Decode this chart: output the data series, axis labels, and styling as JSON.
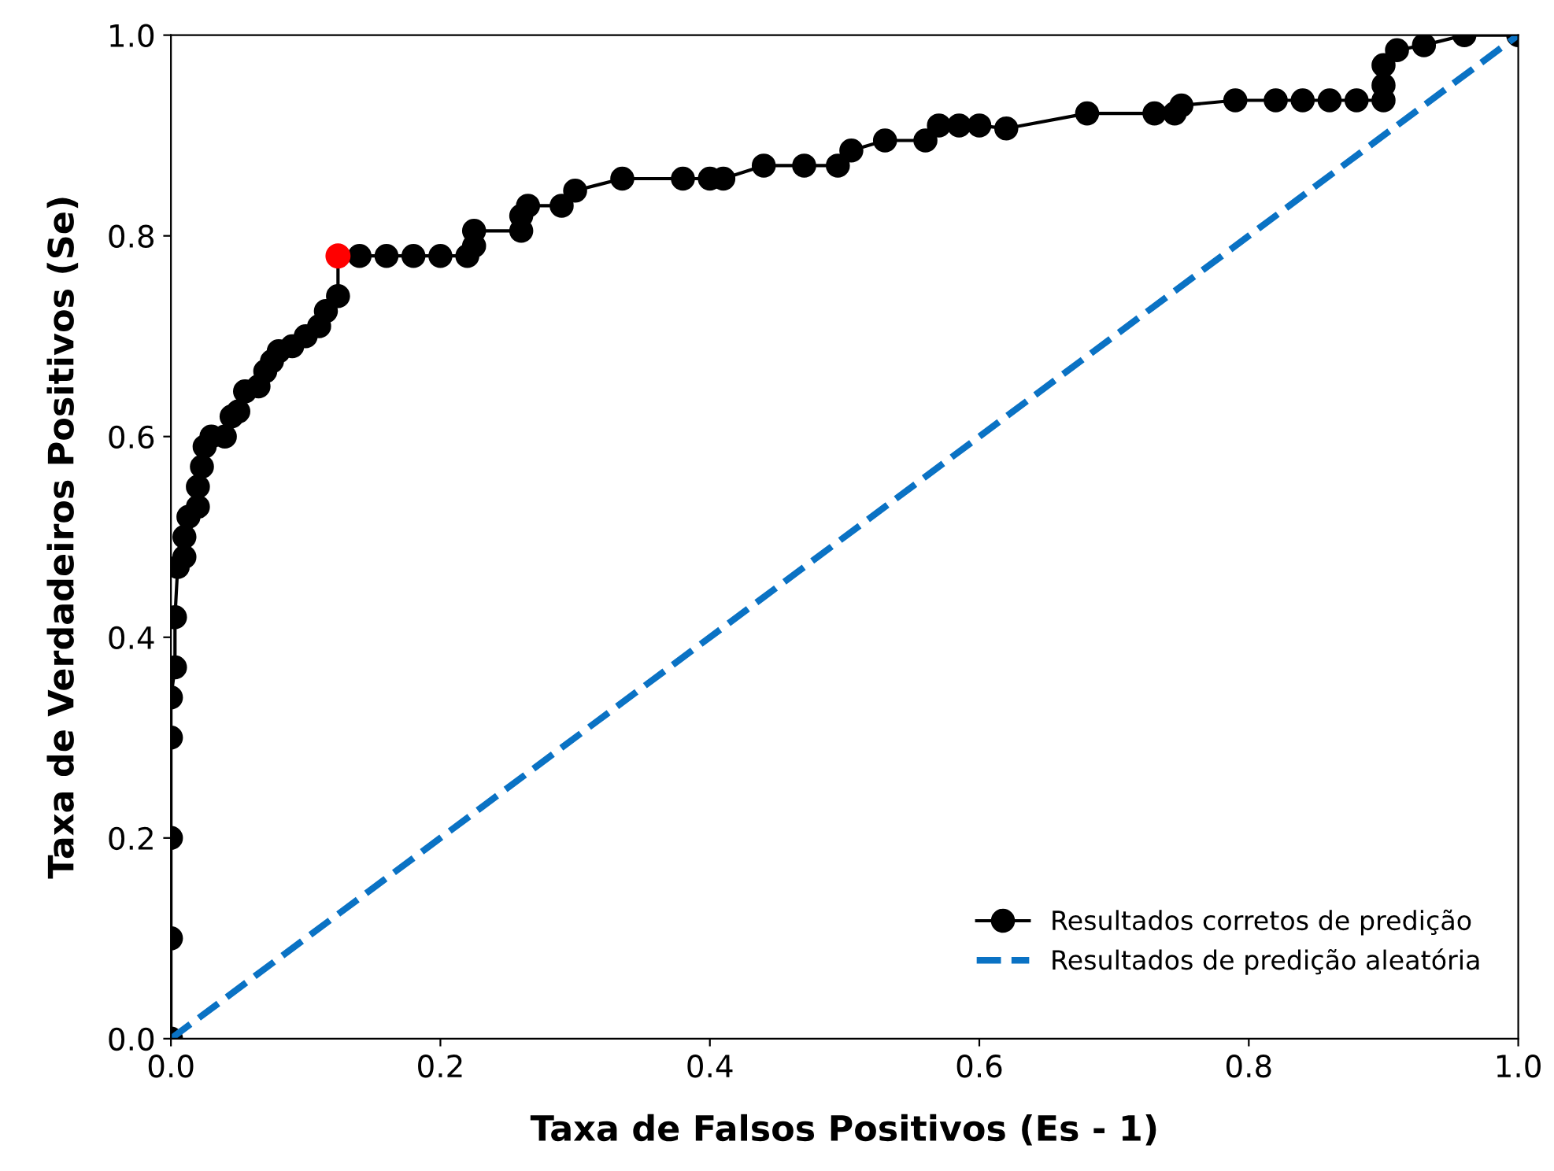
{
  "chart_data": {
    "type": "line",
    "xlabel": "Taxa de Falsos Positivos (Es - 1)",
    "ylabel": "Taxa de Verdadeiros Positivos (Se)",
    "xlim": [
      0,
      1
    ],
    "ylim": [
      0,
      1
    ],
    "xticks": [
      {
        "value": 0,
        "label": "0.0"
      },
      0.2,
      0.4,
      0.6,
      0.8,
      {
        "value": 1,
        "label": "1.0"
      }
    ],
    "yticks": [
      {
        "value": 0,
        "label": "0.0"
      },
      0.2,
      0.4,
      0.6,
      0.8,
      {
        "value": 1,
        "label": "1.0"
      }
    ],
    "grid": false,
    "legend": "bottom right",
    "series": [
      {
        "name": "Resultados corretos de predição",
        "color": "#000000",
        "marker": "circle",
        "line_style": "solid",
        "x": [
          0,
          0,
          0,
          0,
          0,
          0.003,
          0.003,
          0.005,
          0.01,
          0.01,
          0.013,
          0.02,
          0.02,
          0.023,
          0.025,
          0.03,
          0.04,
          0.045,
          0.05,
          0.055,
          0.065,
          0.07,
          0.075,
          0.08,
          0.09,
          0.1,
          0.11,
          0.115,
          0.124,
          0.124,
          0.14,
          0.16,
          0.18,
          0.2,
          0.22,
          0.225,
          0.225,
          0.26,
          0.26,
          0.265,
          0.29,
          0.3,
          0.335,
          0.38,
          0.4,
          0.41,
          0.44,
          0.47,
          0.495,
          0.505,
          0.53,
          0.56,
          0.57,
          0.585,
          0.6,
          0.62,
          0.68,
          0.73,
          0.745,
          0.75,
          0.79,
          0.82,
          0.84,
          0.86,
          0.88,
          0.9,
          0.9,
          0.9,
          0.91,
          0.93,
          0.96,
          1.0
        ],
        "values": [
          0,
          0.1,
          0.2,
          0.3,
          0.34,
          0.37,
          0.42,
          0.47,
          0.48,
          0.5,
          0.52,
          0.53,
          0.55,
          0.57,
          0.59,
          0.6,
          0.6,
          0.62,
          0.625,
          0.645,
          0.65,
          0.665,
          0.675,
          0.685,
          0.69,
          0.7,
          0.71,
          0.725,
          0.74,
          0.78,
          0.78,
          0.78,
          0.78,
          0.78,
          0.78,
          0.79,
          0.805,
          0.805,
          0.82,
          0.83,
          0.83,
          0.845,
          0.857,
          0.857,
          0.857,
          0.857,
          0.87,
          0.87,
          0.87,
          0.885,
          0.895,
          0.895,
          0.91,
          0.91,
          0.91,
          0.907,
          0.922,
          0.922,
          0.922,
          0.93,
          0.935,
          0.935,
          0.935,
          0.935,
          0.935,
          0.935,
          0.95,
          0.97,
          0.985,
          0.99,
          1.0,
          1.0
        ]
      },
      {
        "name": "Resultados de predição aleatória",
        "color": "#0a72c4",
        "marker": "none",
        "line_style": "dashed",
        "x": [
          0,
          1
        ],
        "values": [
          0,
          1
        ]
      },
      {
        "type": "scatter",
        "color": "#ff0000",
        "marker": "circle",
        "x": [
          0.124
        ],
        "values": [
          0.78
        ]
      }
    ]
  }
}
